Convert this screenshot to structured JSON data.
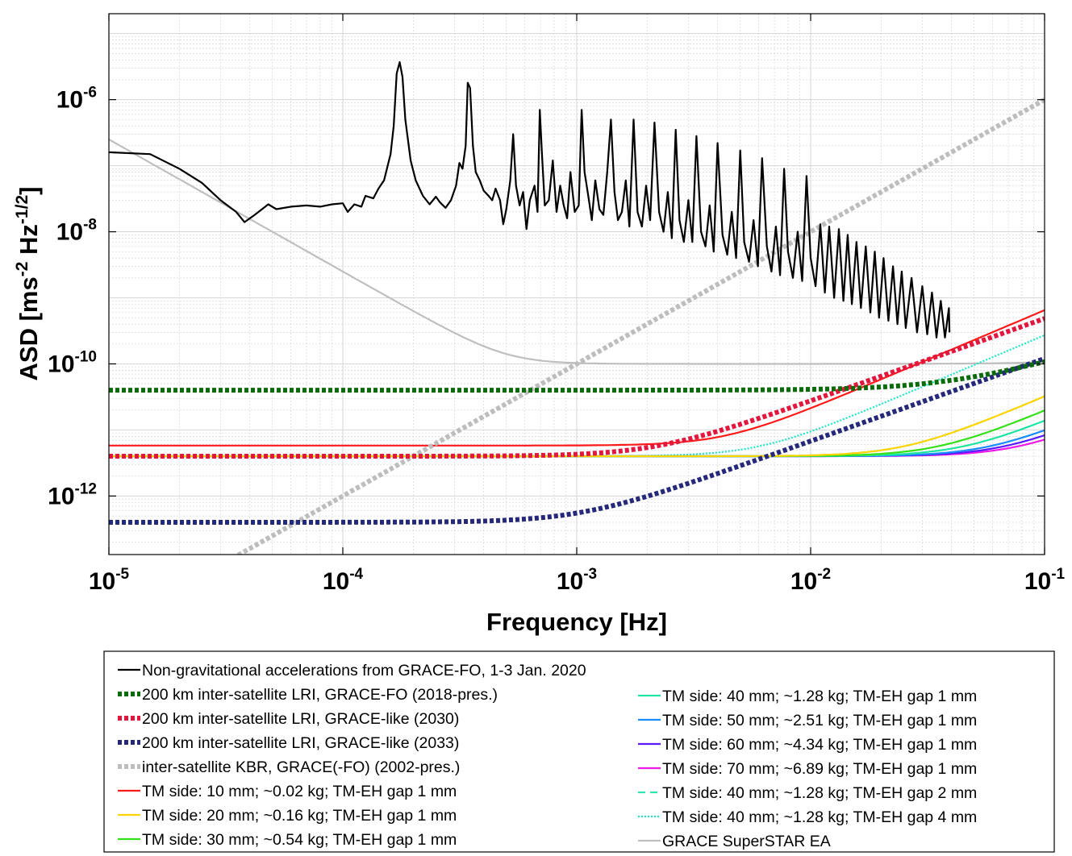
{
  "chart_data": {
    "type": "line",
    "xscale": "log",
    "yscale": "log",
    "xlabel": "Frequency [Hz]",
    "ylabel": "ASD [ms-2 Hz-1/2]",
    "ylabel_parts": {
      "main": "ASD [ms",
      "sup1": "-2",
      "mid": " Hz",
      "sup2": "-1/2",
      "end": "]"
    },
    "xlim": [
      1e-05,
      0.1
    ],
    "ylim": [
      1.3e-13,
      2e-05
    ],
    "grid": true,
    "x_ticks": [
      {
        "value": 1e-05,
        "base": "10",
        "exp": "-5"
      },
      {
        "value": 0.0001,
        "base": "10",
        "exp": "-4"
      },
      {
        "value": 0.001,
        "base": "10",
        "exp": "-3"
      },
      {
        "value": 0.01,
        "base": "10",
        "exp": "-2"
      },
      {
        "value": 0.1,
        "base": "10",
        "exp": "-1"
      }
    ],
    "y_ticks": [
      {
        "value": 1e-12,
        "base": "10",
        "exp": "-12"
      },
      {
        "value": 1e-10,
        "base": "10",
        "exp": "-10"
      },
      {
        "value": 1e-08,
        "base": "10",
        "exp": "-8"
      },
      {
        "value": 1e-06,
        "base": "10",
        "exp": "-6"
      }
    ],
    "series": [
      {
        "name": "Non-gravitational accelerations from GRACE-FO, 1-3 Jan. 2020",
        "color": "#000000",
        "style": "solid",
        "width": 2.2,
        "points": [
          [
            1e-05,
            1.6e-07
          ],
          [
            1.5e-05,
            1.5e-07
          ],
          [
            2e-05,
            9e-08
          ],
          [
            2.5e-05,
            5.5e-08
          ],
          [
            3e-05,
            3e-08
          ],
          [
            3.5e-05,
            2e-08
          ],
          [
            3.8e-05,
            1.4e-08
          ],
          [
            4.2e-05,
            1.8e-08
          ],
          [
            4.8e-05,
            2.6e-08
          ],
          [
            5.2e-05,
            2.2e-08
          ],
          [
            6e-05,
            2.4e-08
          ],
          [
            7e-05,
            2.5e-08
          ],
          [
            8e-05,
            2.4e-08
          ],
          [
            9e-05,
            2.6e-08
          ],
          [
            0.0001,
            2.7e-08
          ],
          [
            0.000105,
            2e-08
          ],
          [
            0.000112,
            2.6e-08
          ],
          [
            0.00012,
            2.4e-08
          ],
          [
            0.000125,
            3.5e-08
          ],
          [
            0.000135,
            3.2e-08
          ],
          [
            0.000142,
            4.5e-08
          ],
          [
            0.00015,
            6e-08
          ],
          [
            0.00016,
            1.5e-07
          ],
          [
            0.000165,
            4e-07
          ],
          [
            0.00017,
            2.5e-06
          ],
          [
            0.000175,
            3.7e-06
          ],
          [
            0.00018,
            2.2e-06
          ],
          [
            0.000185,
            5e-07
          ],
          [
            0.000195,
            1.2e-07
          ],
          [
            0.000205,
            6e-08
          ],
          [
            0.00022,
            3.5e-08
          ],
          [
            0.000235,
            2.6e-08
          ],
          [
            0.00025,
            3.4e-08
          ],
          [
            0.00026,
            2.8e-08
          ],
          [
            0.000275,
            2.3e-08
          ],
          [
            0.00029,
            3e-08
          ],
          [
            0.000305,
            5e-08
          ],
          [
            0.000315,
            1.1e-07
          ],
          [
            0.000325,
            9e-08
          ],
          [
            0.000335,
            2e-07
          ],
          [
            0.000342,
            1.8e-06
          ],
          [
            0.00035,
            1.5e-06
          ],
          [
            0.00036,
            2e-07
          ],
          [
            0.00037,
            8e-08
          ],
          [
            0.000385,
            6e-08
          ],
          [
            0.0004,
            4.2e-08
          ],
          [
            0.00042,
            3.5e-08
          ],
          [
            0.000435,
            3e-08
          ],
          [
            0.00045,
            4.5e-08
          ],
          [
            0.00047,
            3e-08
          ],
          [
            0.000485,
            1.3e-08
          ],
          [
            0.0005,
            2.2e-08
          ],
          [
            0.00052,
            6e-08
          ],
          [
            0.000535,
            3e-07
          ],
          [
            0.00055,
            5e-08
          ],
          [
            0.00057,
            2.5e-08
          ],
          [
            0.00059,
            4e-08
          ],
          [
            0.00061,
            1.1e-08
          ],
          [
            0.00063,
            3e-08
          ],
          [
            0.00066,
            5e-08
          ],
          [
            0.00068,
            2e-08
          ],
          [
            0.000695,
            7e-07
          ],
          [
            0.00071,
            1.5e-07
          ],
          [
            0.00073,
            2.5e-08
          ],
          [
            0.00076,
            3e-08
          ],
          [
            0.00079,
            1.2e-07
          ],
          [
            0.00082,
            2e-08
          ],
          [
            0.00085,
            5e-08
          ],
          [
            0.00088,
            2.5e-08
          ],
          [
            0.00091,
            1.6e-08
          ],
          [
            0.00094,
            8e-08
          ],
          [
            0.00098,
            2e-08
          ],
          [
            0.00102,
            2.5e-08
          ],
          [
            0.00105,
            7e-07
          ],
          [
            0.00108,
            8e-08
          ],
          [
            0.00112,
            3.5e-08
          ],
          [
            0.00116,
            1.5e-08
          ],
          [
            0.0012,
            6e-08
          ],
          [
            0.00125,
            2.2e-08
          ],
          [
            0.0013,
            1.8e-08
          ],
          [
            0.00135,
            8e-08
          ],
          [
            0.0014,
            5e-07
          ],
          [
            0.00145,
            4e-08
          ],
          [
            0.0015,
            1.5e-08
          ],
          [
            0.00156,
            2e-08
          ],
          [
            0.00162,
            6e-08
          ],
          [
            0.00168,
            1.2e-08
          ],
          [
            0.00175,
            5e-07
          ],
          [
            0.00182,
            2e-08
          ],
          [
            0.0019,
            1.2e-08
          ],
          [
            0.00198,
            5e-08
          ],
          [
            0.00206,
            1.5e-08
          ],
          [
            0.00215,
            4.5e-07
          ],
          [
            0.00225,
            2e-08
          ],
          [
            0.00235,
            1e-08
          ],
          [
            0.00245,
            4e-08
          ],
          [
            0.00255,
            8e-09
          ],
          [
            0.00265,
            3.5e-07
          ],
          [
            0.00275,
            1.5e-08
          ],
          [
            0.00287,
            7e-09
          ],
          [
            0.003,
            3e-08
          ],
          [
            0.00312,
            7e-09
          ],
          [
            0.00325,
            2.8e-07
          ],
          [
            0.0034,
            1e-08
          ],
          [
            0.00355,
            6e-09
          ],
          [
            0.0037,
            2.5e-08
          ],
          [
            0.00385,
            5e-09
          ],
          [
            0.004,
            2.2e-07
          ],
          [
            0.0042,
            9e-09
          ],
          [
            0.0044,
            4.5e-09
          ],
          [
            0.0046,
            2e-08
          ],
          [
            0.0048,
            4e-09
          ],
          [
            0.005,
            1.7e-07
          ],
          [
            0.0052,
            7e-09
          ],
          [
            0.00545,
            3.5e-09
          ],
          [
            0.0057,
            1.5e-08
          ],
          [
            0.00595,
            3e-09
          ],
          [
            0.0062,
            1.3e-07
          ],
          [
            0.0065,
            6e-09
          ],
          [
            0.0068,
            2.5e-09
          ],
          [
            0.0071,
            1.2e-08
          ],
          [
            0.0074,
            2.2e-09
          ],
          [
            0.0077,
            9e-08
          ],
          [
            0.008,
            5e-09
          ],
          [
            0.0084,
            2e-09
          ],
          [
            0.0088,
            1e-08
          ],
          [
            0.0092,
            1.8e-09
          ],
          [
            0.0096,
            7e-08
          ],
          [
            0.01,
            4e-09
          ],
          [
            0.0105,
            1.5e-09
          ],
          [
            0.011,
            1.3e-08
          ],
          [
            0.0115,
            1.2e-09
          ],
          [
            0.012,
            1.2e-08
          ],
          [
            0.0126,
            1e-09
          ],
          [
            0.0132,
            1.1e-08
          ],
          [
            0.0138,
            9e-10
          ],
          [
            0.0144,
            9e-09
          ],
          [
            0.015,
            8e-10
          ],
          [
            0.0157,
            7e-09
          ],
          [
            0.0164,
            7e-10
          ],
          [
            0.0172,
            6e-09
          ],
          [
            0.018,
            6e-10
          ],
          [
            0.0188,
            5e-09
          ],
          [
            0.0196,
            5e-10
          ],
          [
            0.0205,
            4e-09
          ],
          [
            0.0215,
            4.5e-10
          ],
          [
            0.0225,
            3e-09
          ],
          [
            0.0235,
            4e-10
          ],
          [
            0.0245,
            2.5e-09
          ],
          [
            0.0255,
            3.5e-10
          ],
          [
            0.027,
            2e-09
          ],
          [
            0.0285,
            3e-10
          ],
          [
            0.03,
            1.5e-09
          ],
          [
            0.0315,
            2.8e-10
          ],
          [
            0.033,
            1.2e-09
          ],
          [
            0.0345,
            2.5e-10
          ],
          [
            0.036,
            9e-10
          ],
          [
            0.0375,
            2.5e-10
          ],
          [
            0.039,
            7e-10
          ],
          [
            0.0392,
            3e-10
          ]
        ]
      },
      {
        "name": "200 km inter-satellite LRI, GRACE-FO (2018-pres.)",
        "color": "#0a6b0a",
        "style": "dotted",
        "width": 6,
        "model": {
          "base": 4e-11,
          "corner": 0.04,
          "power": 1
        }
      },
      {
        "name": "200 km inter-satellite LRI, GRACE-like (2030)",
        "color": "#e3173e",
        "style": "dotted",
        "width": 6,
        "model": {
          "base": 4e-12,
          "corner": 0.00215,
          "power": 1.25
        }
      },
      {
        "name": "200 km inter-satellite LRI, GRACE-like (2033)",
        "color": "#26287a",
        "style": "dotted",
        "width": 6,
        "model": {
          "base": 4e-13,
          "corner": 0.00104,
          "power": 1.25
        }
      },
      {
        "name": "inter-satellite KBR, GRACE(-FO) (2002-pres.)",
        "color": "#bdbdbd",
        "style": "dotted",
        "width": 6,
        "model": {
          "powerlaw": [
            1e-06,
            0.1,
            2
          ]
        }
      },
      {
        "name": "TM side: 10 mm; ~0.02 kg; TM-EH gap 1 mm",
        "color": "#ff1a1a",
        "style": "solid",
        "width": 2.2,
        "model": {
          "base": 5.8e-12,
          "corner": 0.0043,
          "power": 1.5
        }
      },
      {
        "name": "TM side: 20 mm; ~0.16 kg; TM-EH gap 1 mm",
        "color": "#ffd400",
        "style": "solid",
        "width": 2.2,
        "model": {
          "base": 4e-12,
          "corner": 0.025,
          "power": 1.5
        }
      },
      {
        "name": "TM side: 30 mm; ~0.54 kg; TM-EH gap 1 mm",
        "color": "#33e01a",
        "style": "solid",
        "width": 2.2,
        "model": {
          "base": 4e-12,
          "corner": 0.035,
          "power": 1.5
        }
      },
      {
        "name": "TM side: 40 mm; ~1.28 kg; TM-EH gap 1 mm",
        "color": "#1ee6a0",
        "style": "solid",
        "width": 2.2,
        "model": {
          "base": 4e-12,
          "corner": 0.045,
          "power": 1.5
        }
      },
      {
        "name": "TM side: 50 mm; ~2.51 kg; TM-EH gap 1 mm",
        "color": "#1a8cff",
        "style": "solid",
        "width": 2.2,
        "model": {
          "base": 4e-12,
          "corner": 0.058,
          "power": 1.5
        }
      },
      {
        "name": "TM side: 60 mm; ~4.34 kg; TM-EH gap 1 mm",
        "color": "#5a1aff",
        "style": "solid",
        "width": 2.2,
        "model": {
          "base": 4e-12,
          "corner": 0.067,
          "power": 1.5
        }
      },
      {
        "name": "TM side: 70 mm; ~6.89 kg; TM-EH gap 1 mm",
        "color": "#ee1ae8",
        "style": "solid",
        "width": 2.2,
        "model": {
          "base": 4e-12,
          "corner": 0.077,
          "power": 1.5
        }
      },
      {
        "name": "TM side: 40 mm; ~1.28 kg; TM-EH gap 2 mm",
        "color": "#2ee6b0",
        "style": "dashed",
        "width": 2.2,
        "model": {
          "base": 4e-12,
          "corner": 0.025,
          "power": 1.5
        }
      },
      {
        "name": "TM side: 40 mm; ~1.28 kg; TM-EH gap 4 mm",
        "color": "#1ee6c8",
        "style": "dotted",
        "width": 2.2,
        "model": {
          "base": 4e-12,
          "corner": 0.006,
          "power": 1.5
        }
      },
      {
        "name": "GRACE SuperSTAR EA",
        "color": "#bfbfbf",
        "style": "solid",
        "width": 2.2,
        "model": {
          "base": 1e-10,
          "cut": 0.0005,
          "lowpower": 2,
          "highcorner": 0.22,
          "highpower": 1.2
        }
      }
    ],
    "legend": {
      "position": "bottom",
      "left_column": [
        0,
        1,
        2,
        3,
        4,
        5,
        6,
        7
      ],
      "right_column": [
        8,
        9,
        10,
        11,
        12,
        13,
        14
      ]
    }
  }
}
